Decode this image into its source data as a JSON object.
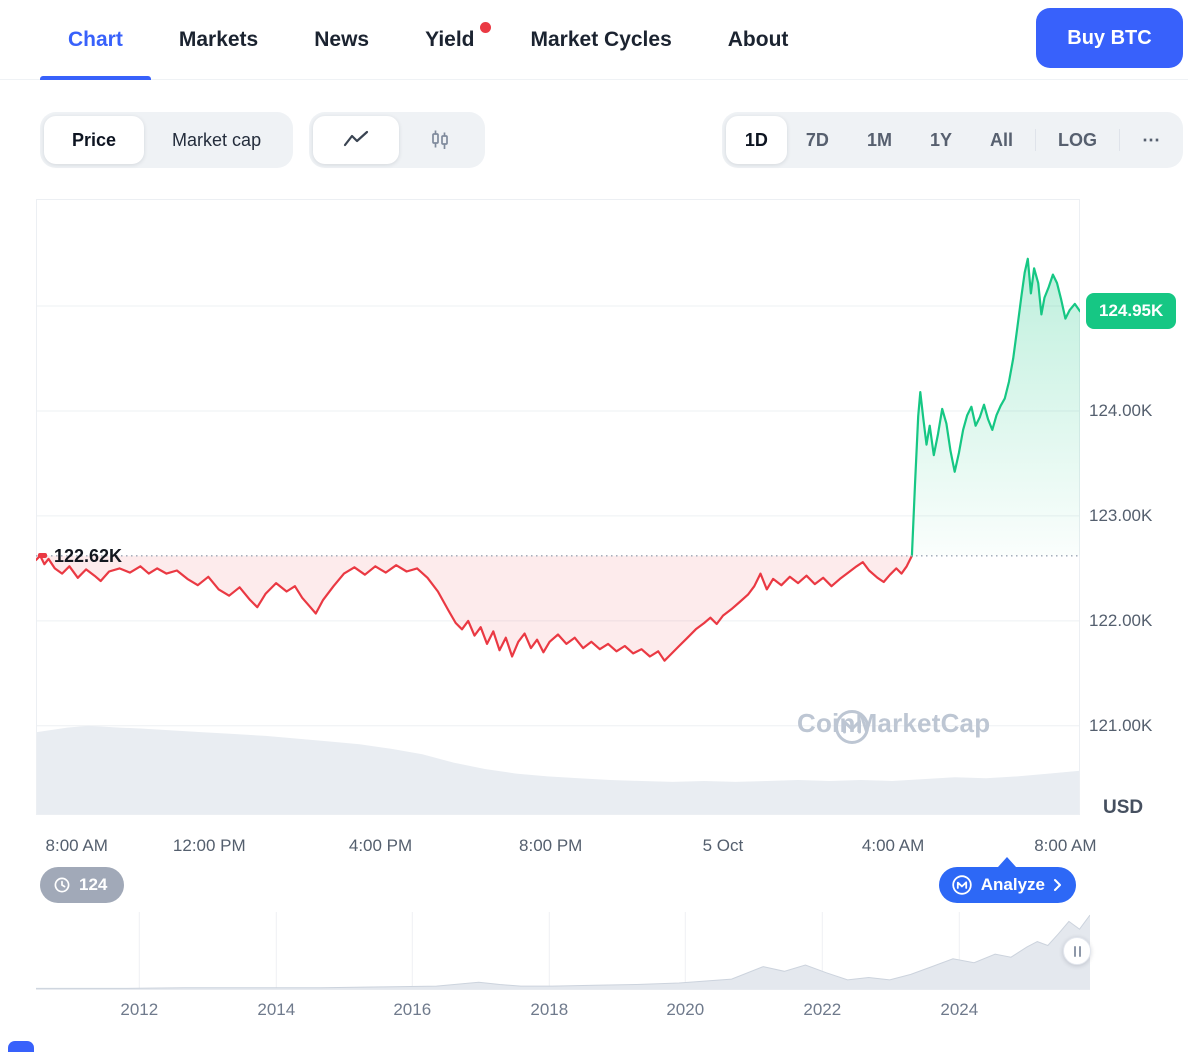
{
  "nav": {
    "tabs": [
      {
        "label": "Chart",
        "active": true
      },
      {
        "label": "Markets",
        "active": false
      },
      {
        "label": "News",
        "active": false
      },
      {
        "label": "Yield",
        "active": false,
        "notification_dot": true
      },
      {
        "label": "Market Cycles",
        "active": false
      },
      {
        "label": "About",
        "active": false
      }
    ],
    "buy_button_label": "Buy BTC"
  },
  "toolbar": {
    "metric_toggle": {
      "selected": "Price",
      "options": [
        "Price",
        "Market cap"
      ]
    },
    "chart_type_toggle": {
      "selected": "line-chart",
      "options": [
        "line-chart",
        "candlestick-chart"
      ]
    },
    "range_toggle": {
      "selected": "1D",
      "options": [
        "1D",
        "7D",
        "1M",
        "1Y",
        "All"
      ],
      "scale_label": "LOG",
      "more_label": "⋯"
    }
  },
  "chart": {
    "open_price_label": "122.62K",
    "last_price_label": "124.95K",
    "axis_unit_label": "USD",
    "watermark_text": "CoinMarketCap",
    "history_pill_label": "124",
    "analyze_button_label": "Analyze"
  },
  "colors": {
    "accent_blue": "#3861fb",
    "up_green": "#16c784",
    "down_red": "#ea3943",
    "control_bg": "#eff2f5",
    "grid_line": "#eef0f3",
    "muted_text": "#57606f",
    "dark_text": "#0d1421"
  },
  "chart_data": [
    {
      "type": "line",
      "title": "BTC/USD intraday price (1D)",
      "xlabel": "",
      "ylabel": "USD (thousands)",
      "open": 122.62,
      "last": 124.95,
      "ylim": [
        120.15,
        126.02
      ],
      "grid": true,
      "gridline_values": [
        125,
        124,
        123,
        122,
        121
      ],
      "y_ticks": [
        {
          "value": 124,
          "label": "124.00K"
        },
        {
          "value": 123,
          "label": "123.00K"
        },
        {
          "value": 122,
          "label": "122.00K"
        },
        {
          "value": 121,
          "label": "121.00K"
        }
      ],
      "x_ticks": [
        {
          "pos": 0.039,
          "label": "8:00 AM"
        },
        {
          "pos": 0.166,
          "label": "12:00 PM"
        },
        {
          "pos": 0.33,
          "label": "4:00 PM"
        },
        {
          "pos": 0.493,
          "label": "8:00 PM"
        },
        {
          "pos": 0.658,
          "label": "5 Oct"
        },
        {
          "pos": 0.821,
          "label": "4:00 AM"
        },
        {
          "pos": 0.986,
          "label": "8:00 AM"
        }
      ],
      "series": [
        {
          "name": "price-below-open",
          "color": "#ea3943",
          "fill": "red-tint",
          "points": [
            [
              0.0,
              122.58
            ],
            [
              0.004,
              122.62
            ],
            [
              0.008,
              122.54
            ],
            [
              0.012,
              122.59
            ],
            [
              0.018,
              122.5
            ],
            [
              0.025,
              122.45
            ],
            [
              0.032,
              122.52
            ],
            [
              0.04,
              122.41
            ],
            [
              0.048,
              122.49
            ],
            [
              0.056,
              122.43
            ],
            [
              0.062,
              122.38
            ],
            [
              0.07,
              122.47
            ],
            [
              0.08,
              122.5
            ],
            [
              0.09,
              122.46
            ],
            [
              0.1,
              122.52
            ],
            [
              0.108,
              122.45
            ],
            [
              0.116,
              122.5
            ],
            [
              0.125,
              122.45
            ],
            [
              0.135,
              122.48
            ],
            [
              0.145,
              122.4
            ],
            [
              0.155,
              122.34
            ],
            [
              0.165,
              122.42
            ],
            [
              0.175,
              122.3
            ],
            [
              0.185,
              122.24
            ],
            [
              0.195,
              122.32
            ],
            [
              0.205,
              122.2
            ],
            [
              0.212,
              122.13
            ],
            [
              0.22,
              122.26
            ],
            [
              0.23,
              122.36
            ],
            [
              0.24,
              122.28
            ],
            [
              0.248,
              122.33
            ],
            [
              0.255,
              122.22
            ],
            [
              0.262,
              122.14
            ],
            [
              0.268,
              122.07
            ],
            [
              0.275,
              122.2
            ],
            [
              0.285,
              122.33
            ],
            [
              0.295,
              122.45
            ],
            [
              0.305,
              122.51
            ],
            [
              0.315,
              122.44
            ],
            [
              0.325,
              122.52
            ],
            [
              0.335,
              122.46
            ],
            [
              0.345,
              122.53
            ],
            [
              0.355,
              122.47
            ],
            [
              0.365,
              122.5
            ],
            [
              0.375,
              122.41
            ],
            [
              0.385,
              122.28
            ],
            [
              0.395,
              122.1
            ],
            [
              0.402,
              121.98
            ],
            [
              0.408,
              121.92
            ],
            [
              0.414,
              122.0
            ],
            [
              0.42,
              121.86
            ],
            [
              0.426,
              121.94
            ],
            [
              0.432,
              121.78
            ],
            [
              0.438,
              121.9
            ],
            [
              0.444,
              121.72
            ],
            [
              0.45,
              121.84
            ],
            [
              0.456,
              121.66
            ],
            [
              0.462,
              121.8
            ],
            [
              0.468,
              121.88
            ],
            [
              0.474,
              121.74
            ],
            [
              0.48,
              121.82
            ],
            [
              0.486,
              121.7
            ],
            [
              0.492,
              121.8
            ],
            [
              0.5,
              121.87
            ],
            [
              0.508,
              121.78
            ],
            [
              0.516,
              121.84
            ],
            [
              0.524,
              121.74
            ],
            [
              0.532,
              121.8
            ],
            [
              0.54,
              121.73
            ],
            [
              0.548,
              121.78
            ],
            [
              0.556,
              121.71
            ],
            [
              0.564,
              121.76
            ],
            [
              0.572,
              121.69
            ],
            [
              0.58,
              121.73
            ],
            [
              0.588,
              121.66
            ],
            [
              0.596,
              121.71
            ],
            [
              0.602,
              121.62
            ],
            [
              0.608,
              121.68
            ],
            [
              0.616,
              121.76
            ],
            [
              0.624,
              121.84
            ],
            [
              0.632,
              121.92
            ],
            [
              0.64,
              121.98
            ],
            [
              0.646,
              122.03
            ],
            [
              0.652,
              121.97
            ],
            [
              0.658,
              122.05
            ],
            [
              0.666,
              122.11
            ],
            [
              0.674,
              122.18
            ],
            [
              0.682,
              122.25
            ],
            [
              0.688,
              122.33
            ],
            [
              0.694,
              122.45
            ],
            [
              0.7,
              122.3
            ],
            [
              0.706,
              122.4
            ],
            [
              0.714,
              122.34
            ],
            [
              0.722,
              122.42
            ],
            [
              0.73,
              122.36
            ],
            [
              0.738,
              122.43
            ],
            [
              0.746,
              122.35
            ],
            [
              0.754,
              122.41
            ],
            [
              0.762,
              122.33
            ],
            [
              0.77,
              122.4
            ],
            [
              0.778,
              122.46
            ],
            [
              0.786,
              122.52
            ],
            [
              0.792,
              122.56
            ],
            [
              0.798,
              122.48
            ],
            [
              0.806,
              122.41
            ],
            [
              0.812,
              122.37
            ],
            [
              0.818,
              122.44
            ],
            [
              0.824,
              122.5
            ],
            [
              0.829,
              122.45
            ],
            [
              0.834,
              122.52
            ],
            [
              0.839,
              122.62
            ]
          ]
        },
        {
          "name": "price-above-open",
          "color": "#16c784",
          "fill": "green-gradient",
          "points": [
            [
              0.839,
              122.62
            ],
            [
              0.842,
              123.3
            ],
            [
              0.845,
              123.95
            ],
            [
              0.847,
              124.18
            ],
            [
              0.85,
              123.92
            ],
            [
              0.853,
              123.68
            ],
            [
              0.856,
              123.86
            ],
            [
              0.86,
              123.58
            ],
            [
              0.864,
              123.78
            ],
            [
              0.868,
              124.02
            ],
            [
              0.872,
              123.88
            ],
            [
              0.876,
              123.62
            ],
            [
              0.88,
              123.42
            ],
            [
              0.884,
              123.6
            ],
            [
              0.888,
              123.82
            ],
            [
              0.892,
              123.96
            ],
            [
              0.896,
              124.04
            ],
            [
              0.9,
              123.86
            ],
            [
              0.904,
              123.94
            ],
            [
              0.908,
              124.06
            ],
            [
              0.912,
              123.92
            ],
            [
              0.916,
              123.82
            ],
            [
              0.92,
              123.96
            ],
            [
              0.924,
              124.05
            ],
            [
              0.928,
              124.12
            ],
            [
              0.932,
              124.28
            ],
            [
              0.936,
              124.5
            ],
            [
              0.94,
              124.8
            ],
            [
              0.944,
              125.1
            ],
            [
              0.947,
              125.32
            ],
            [
              0.95,
              125.45
            ],
            [
              0.953,
              125.12
            ],
            [
              0.956,
              125.36
            ],
            [
              0.96,
              125.22
            ],
            [
              0.963,
              124.92
            ],
            [
              0.966,
              125.08
            ],
            [
              0.97,
              125.18
            ],
            [
              0.974,
              125.3
            ],
            [
              0.978,
              125.22
            ],
            [
              0.982,
              125.06
            ],
            [
              0.986,
              124.88
            ],
            [
              0.99,
              124.96
            ],
            [
              0.995,
              125.02
            ],
            [
              1.0,
              124.95
            ]
          ]
        }
      ],
      "volume_profile": {
        "color": "#e9edf2",
        "points": [
          [
            0.0,
            0.9
          ],
          [
            0.03,
            0.95
          ],
          [
            0.05,
            0.97
          ],
          [
            0.08,
            0.95
          ],
          [
            0.1,
            0.94
          ],
          [
            0.13,
            0.92
          ],
          [
            0.16,
            0.9
          ],
          [
            0.19,
            0.88
          ],
          [
            0.22,
            0.86
          ],
          [
            0.25,
            0.83
          ],
          [
            0.28,
            0.8
          ],
          [
            0.31,
            0.77
          ],
          [
            0.34,
            0.72
          ],
          [
            0.37,
            0.66
          ],
          [
            0.4,
            0.57
          ],
          [
            0.43,
            0.5
          ],
          [
            0.46,
            0.45
          ],
          [
            0.49,
            0.42
          ],
          [
            0.52,
            0.4
          ],
          [
            0.55,
            0.38
          ],
          [
            0.58,
            0.37
          ],
          [
            0.61,
            0.36
          ],
          [
            0.64,
            0.37
          ],
          [
            0.67,
            0.36
          ],
          [
            0.7,
            0.37
          ],
          [
            0.73,
            0.38
          ],
          [
            0.76,
            0.37
          ],
          [
            0.79,
            0.38
          ],
          [
            0.82,
            0.37
          ],
          [
            0.85,
            0.39
          ],
          [
            0.88,
            0.41
          ],
          [
            0.91,
            0.4
          ],
          [
            0.94,
            0.42
          ],
          [
            0.97,
            0.45
          ],
          [
            1.0,
            0.48
          ]
        ]
      }
    },
    {
      "type": "area",
      "title": "All-time history range selector",
      "x_ticks": [
        {
          "pos": 0.098,
          "label": "2012"
        },
        {
          "pos": 0.228,
          "label": "2014"
        },
        {
          "pos": 0.357,
          "label": "2016"
        },
        {
          "pos": 0.487,
          "label": "2018"
        },
        {
          "pos": 0.616,
          "label": "2020"
        },
        {
          "pos": 0.746,
          "label": "2022"
        },
        {
          "pos": 0.876,
          "label": "2024"
        }
      ],
      "points": [
        [
          0.0,
          0.02
        ],
        [
          0.08,
          0.02
        ],
        [
          0.14,
          0.03
        ],
        [
          0.2,
          0.03
        ],
        [
          0.27,
          0.03
        ],
        [
          0.33,
          0.04
        ],
        [
          0.38,
          0.05
        ],
        [
          0.42,
          0.1
        ],
        [
          0.44,
          0.07
        ],
        [
          0.46,
          0.05
        ],
        [
          0.49,
          0.05
        ],
        [
          0.53,
          0.06
        ],
        [
          0.57,
          0.07
        ],
        [
          0.61,
          0.09
        ],
        [
          0.66,
          0.14
        ],
        [
          0.69,
          0.3
        ],
        [
          0.71,
          0.24
        ],
        [
          0.73,
          0.32
        ],
        [
          0.75,
          0.22
        ],
        [
          0.77,
          0.13
        ],
        [
          0.79,
          0.16
        ],
        [
          0.81,
          0.13
        ],
        [
          0.83,
          0.2
        ],
        [
          0.85,
          0.3
        ],
        [
          0.87,
          0.4
        ],
        [
          0.89,
          0.35
        ],
        [
          0.91,
          0.46
        ],
        [
          0.925,
          0.42
        ],
        [
          0.94,
          0.55
        ],
        [
          0.95,
          0.62
        ],
        [
          0.96,
          0.57
        ],
        [
          0.97,
          0.72
        ],
        [
          0.98,
          0.88
        ],
        [
          0.99,
          0.78
        ],
        [
          1.0,
          0.96
        ]
      ]
    }
  ]
}
